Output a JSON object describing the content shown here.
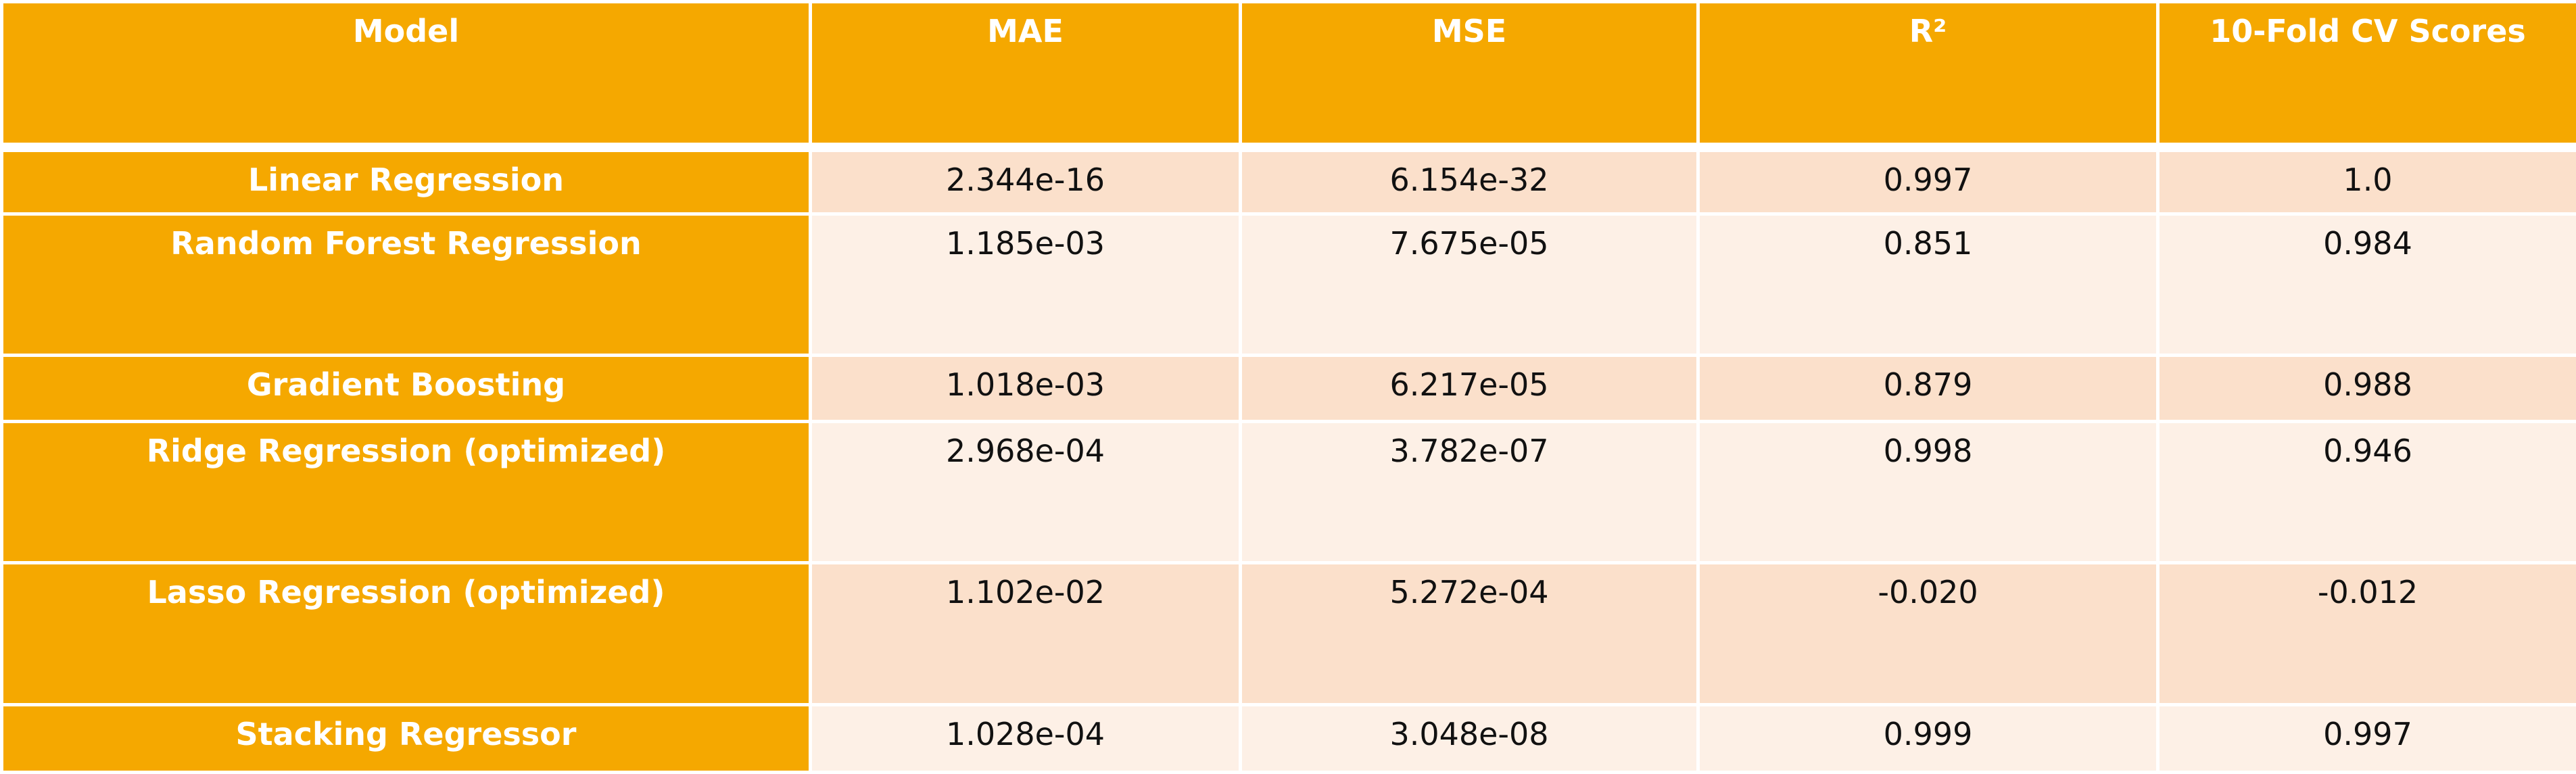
{
  "columns": [
    "Model",
    "MAE",
    "MSE",
    "R²",
    "10-Fold CV Scores"
  ],
  "rows": [
    {
      "model": "Linear Regression",
      "mae": "2.344e-16",
      "mse": "6.154e-32",
      "r2": "0.997",
      "cv": "1.0"
    },
    {
      "model": "Random Forest Regression",
      "mae": "1.185e-03",
      "mse": "7.675e-05",
      "r2": "0.851",
      "cv": "0.984"
    },
    {
      "model": "Gradient Boosting",
      "mae": "1.018e-03",
      "mse": "6.217e-05",
      "r2": "0.879",
      "cv": "0.988"
    },
    {
      "model": "Ridge Regression (optimized)",
      "mae": "2.968e-04",
      "mse": "3.782e-07",
      "r2": "0.998",
      "cv": "0.946"
    },
    {
      "model": "Lasso Regression (optimized)",
      "mae": "1.102e-02",
      "mse": "5.272e-04",
      "r2": "-0.020",
      "cv": "-0.012"
    },
    {
      "model": "Stacking Regressor",
      "mae": "1.028e-04",
      "mse": "3.048e-08",
      "r2": "0.999",
      "cv": "0.997"
    }
  ],
  "colors": {
    "header_bg": "#f5a800",
    "row_odd_bg": "#fbe0cb",
    "row_even_bg": "#fdf0e6"
  }
}
